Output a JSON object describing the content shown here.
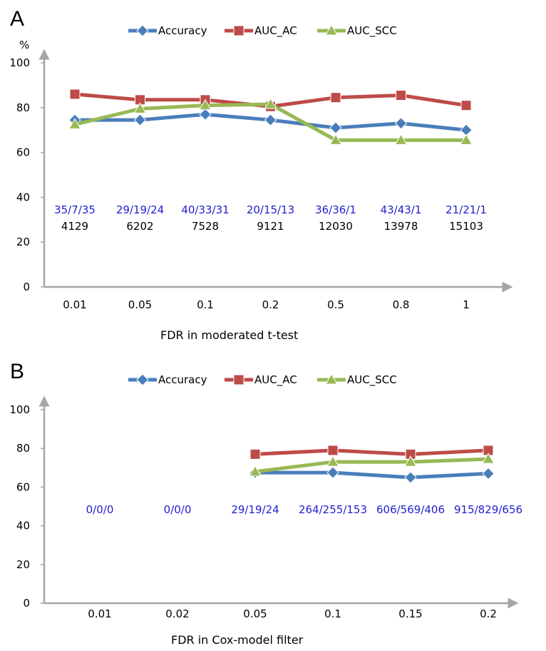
{
  "chart_data": [
    {
      "panel_label": "A",
      "type": "line",
      "unit_label": "%",
      "xlabel": "FDR in moderated t-test",
      "ylabel": "",
      "categories": [
        "0.01",
        "0.05",
        "0.1",
        "0.2",
        "0.5",
        "0.8",
        "1"
      ],
      "ylim": [
        0,
        100
      ],
      "yticks": [
        "0",
        "20",
        "40",
        "60",
        "80",
        "100"
      ],
      "legend_position": "top",
      "series": [
        {
          "name": "Accuracy",
          "color": "#4a7ebb",
          "marker": "diamond",
          "values": [
            74.5,
            74.5,
            77,
            74.5,
            71,
            73,
            70
          ]
        },
        {
          "name": "AUC_AC",
          "color": "#be4b48",
          "marker": "square",
          "values": [
            86,
            83.5,
            83.5,
            80.5,
            84.5,
            85.5,
            81
          ]
        },
        {
          "name": "AUC_SCC",
          "color": "#98b954",
          "marker": "triangle",
          "values": [
            72.5,
            79.5,
            81,
            81.5,
            65.5,
            65.5,
            65.5
          ]
        }
      ],
      "annotations_blue": [
        "35/7/35",
        "29/19/24",
        "40/33/31",
        "20/15/13",
        "36/36/1",
        "43/43/1",
        "21/21/1"
      ],
      "annotations_black": [
        "4129",
        "6202",
        "7528",
        "9121",
        "12030",
        "13978",
        "15103"
      ]
    },
    {
      "panel_label": "B",
      "type": "line",
      "unit_label": "",
      "xlabel": "FDR in Cox-model filter",
      "ylabel": "",
      "categories": [
        "0.01",
        "0.02",
        "0.05",
        "0.1",
        "0.15",
        "0.2"
      ],
      "ylim": [
        0,
        100
      ],
      "yticks": [
        "0",
        "20",
        "40",
        "60",
        "80",
        "100"
      ],
      "legend_position": "top",
      "series": [
        {
          "name": "Accuracy",
          "color": "#4a7ebb",
          "marker": "diamond",
          "values": [
            null,
            null,
            67.5,
            67.5,
            65,
            67
          ]
        },
        {
          "name": "AUC_AC",
          "color": "#be4b48",
          "marker": "square",
          "values": [
            null,
            null,
            77,
            79,
            77,
            79
          ]
        },
        {
          "name": "AUC_SCC",
          "color": "#98b954",
          "marker": "triangle",
          "values": [
            null,
            null,
            68,
            73,
            73,
            74.5
          ]
        }
      ],
      "annotations_blue": [
        "0/0/0",
        "0/0/0",
        "29/19/24",
        "264/255/153",
        "606/569/406",
        "915/829/656"
      ],
      "annotations_black": []
    }
  ]
}
